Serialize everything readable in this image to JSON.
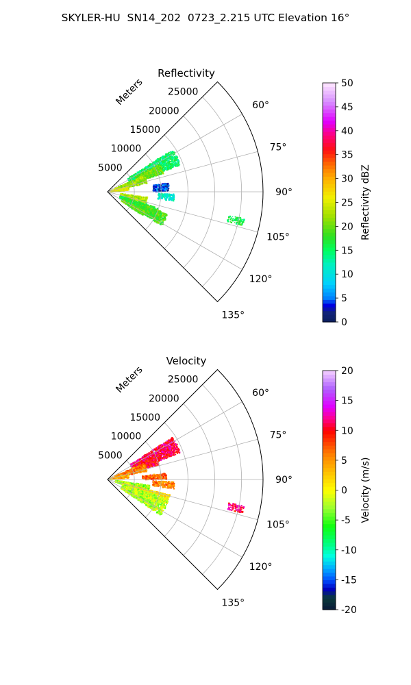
{
  "figure": {
    "title": "SKYLER-HU  SN14_202  0723_2.215 UTC Elevation 16°"
  },
  "chart_data": [
    {
      "type": "heatmap",
      "subtype": "radar-ppi-sector",
      "title": "Reflectivity",
      "range_label": "Meters",
      "range_ticks": [
        5000,
        10000,
        15000,
        20000,
        25000
      ],
      "range_max": 29000,
      "angle_ticks": [
        "60°",
        "75°",
        "90°",
        "105°",
        "120°",
        "135°"
      ],
      "angle_range_deg": [
        45,
        135
      ],
      "grid": true,
      "colorbar": {
        "label": "Reflectivity dBZ",
        "min": 0,
        "max": 50,
        "ticks": [
          0,
          5,
          10,
          15,
          20,
          25,
          30,
          35,
          40,
          45,
          50
        ],
        "placement": "right"
      },
      "echo_regions": [
        {
          "az": [
            57,
            70
          ],
          "r": [
            4500,
            14500
          ],
          "value": 15
        },
        {
          "az": [
            62,
            72
          ],
          "r": [
            6000,
            11000
          ],
          "value": 20
        },
        {
          "az": [
            66,
            78
          ],
          "r": [
            1500,
            7500
          ],
          "value": 22
        },
        {
          "az": [
            76,
            86
          ],
          "r": [
            500,
            4000
          ],
          "value": 25
        },
        {
          "az": [
            82,
            90
          ],
          "r": [
            8500,
            11500
          ],
          "value": 4
        },
        {
          "az": [
            92,
            98
          ],
          "r": [
            9500,
            12500
          ],
          "value": 11
        },
        {
          "az": [
            98,
            108
          ],
          "r": [
            2500,
            7500
          ],
          "value": 23
        },
        {
          "az": [
            108,
            118
          ],
          "r": [
            2500,
            10000
          ],
          "value": 17
        },
        {
          "az": [
            110,
            122
          ],
          "r": [
            7000,
            12000
          ],
          "value": 19
        },
        {
          "az": [
            118,
            124
          ],
          "r": [
            3000,
            8000
          ],
          "value": 20
        },
        {
          "az": [
            101,
            104
          ],
          "r": [
            23000,
            26000
          ],
          "value": 16
        }
      ]
    },
    {
      "type": "heatmap",
      "subtype": "radar-ppi-sector",
      "title": "Velocity",
      "range_label": "Meters",
      "range_ticks": [
        5000,
        10000,
        15000,
        20000,
        25000
      ],
      "range_max": 29000,
      "angle_ticks": [
        "60°",
        "75°",
        "90°",
        "105°",
        "120°",
        "135°"
      ],
      "angle_range_deg": [
        45,
        135
      ],
      "grid": true,
      "colorbar": {
        "label": "Velocity (m/s)",
        "min": -20,
        "max": 20,
        "ticks": [
          -20,
          -15,
          -10,
          -5,
          0,
          5,
          10,
          15,
          20
        ],
        "placement": "right"
      },
      "echo_regions": [
        {
          "az": [
            57,
            70
          ],
          "r": [
            5000,
            14500
          ],
          "value": 11
        },
        {
          "az": [
            64,
            74
          ],
          "r": [
            5000,
            10000
          ],
          "value": 10
        },
        {
          "az": [
            66,
            78
          ],
          "r": [
            1500,
            7500
          ],
          "value": 6
        },
        {
          "az": [
            76,
            86
          ],
          "r": [
            500,
            4000
          ],
          "value": 4
        },
        {
          "az": [
            84,
            90
          ],
          "r": [
            6500,
            11000
          ],
          "value": 7
        },
        {
          "az": [
            92,
            98
          ],
          "r": [
            8500,
            12500
          ],
          "value": 6
        },
        {
          "az": [
            98,
            108
          ],
          "r": [
            1500,
            8000
          ],
          "value": -3
        },
        {
          "az": [
            104,
            112
          ],
          "r": [
            3000,
            12000
          ],
          "value": 1
        },
        {
          "az": [
            108,
            124
          ],
          "r": [
            3000,
            12000
          ],
          "value": -2
        },
        {
          "az": [
            101,
            104
          ],
          "r": [
            23000,
            26000
          ],
          "value": 11
        }
      ]
    }
  ]
}
